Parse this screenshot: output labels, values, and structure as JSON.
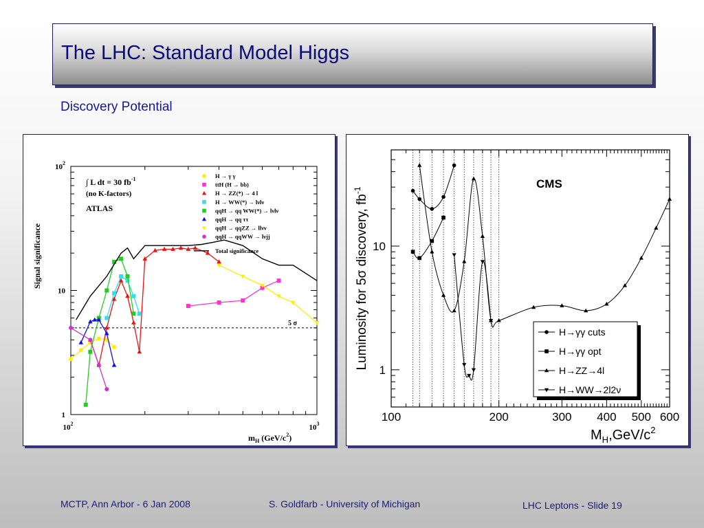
{
  "slide": {
    "title": "The LHC: Standard Model Higgs",
    "subtitle": "Discovery Potential"
  },
  "footer": {
    "left": "MCTP, Ann Arbor - 6 Jan 2008",
    "middle": "S. Goldfarb - University of Michigan",
    "right": "LHC Leptons - Slide 19"
  },
  "chart_data": [
    {
      "type": "line",
      "ylabel": "Signal significance",
      "xlabel_base": "m",
      "xlabel_sub": "H",
      "xlabel_unit": " (GeV/c",
      "xlabel_unit_sup": "2",
      "xlabel_close": ")",
      "xscale": "log",
      "yscale": "log",
      "xlim": [
        100,
        1000
      ],
      "ylim": [
        1,
        100
      ],
      "y_ticks": [
        {
          "base": "1",
          "exp": ""
        },
        {
          "base": "10",
          "exp": ""
        },
        {
          "base": "10",
          "exp": "2"
        }
      ],
      "x_ticks": [
        {
          "base": "10",
          "exp": "2"
        },
        {
          "base": "10",
          "exp": "3"
        }
      ],
      "annotation_lumi_pre": "∫ L dt = 30 fb",
      "annotation_lumi_sup": "-1",
      "annotation_kfactor": "(no K-factors)",
      "annotation_exp": "ATLAS",
      "threshold_label": "5 σ",
      "threshold": 5,
      "legend": [
        {
          "label": "H  →  γ γ",
          "color": "#ffee00",
          "marker": "circle"
        },
        {
          "label": "ttH (H  →  bb)",
          "color": "#ff33cc",
          "marker": "square"
        },
        {
          "label": "H   →  ZZ(*)   →  4 l",
          "color": "#ee1111",
          "marker": "triangle"
        },
        {
          "label": "H   →  WW(*)   →  lνlν",
          "color": "#33ddee",
          "marker": "square"
        },
        {
          "label": "qqH   →  qq WW(*)   →  lνlν",
          "color": "#22cc22",
          "marker": "square"
        },
        {
          "label": "qqH   →  qq ττ",
          "color": "#1111dd",
          "marker": "triangle"
        },
        {
          "label": "qqH   →  qqZZ   →  llνν",
          "color": "#ffee00",
          "marker": "triangle-down"
        },
        {
          "label": "qqH   →  qqWW   →  lνjj",
          "color": "#cc33cc",
          "marker": "circle"
        },
        {
          "label": "Total significance",
          "color": "#000000",
          "marker": "line"
        }
      ],
      "series": [
        {
          "name": "H → γγ",
          "color": "#ffee00",
          "marker": "circle",
          "x": [
            100,
            110,
            120,
            130,
            140,
            150
          ],
          "y": [
            2.8,
            3.3,
            3.8,
            4.1,
            4.0,
            3.5
          ]
        },
        {
          "name": "ttH (H → bb)",
          "color": "#ff33cc",
          "marker": "square",
          "x": [
            300,
            400,
            500,
            600,
            700
          ],
          "y": [
            7.5,
            8.0,
            8.3,
            10.5,
            12
          ]
        },
        {
          "name": "H → ZZ(*) → 4l",
          "color": "#ee1111",
          "marker": "triangle",
          "x": [
            120,
            130,
            140,
            150,
            160,
            170,
            180,
            190,
            200,
            220,
            240,
            260,
            280,
            300,
            320,
            360,
            400
          ],
          "y": [
            4.0,
            2.5,
            5.0,
            8.5,
            12,
            9.0,
            5.5,
            3.2,
            18,
            21,
            21.5,
            21.5,
            22,
            21.5,
            22,
            20,
            17
          ]
        },
        {
          "name": "H → WW(*) → lνlν",
          "color": "#33ddee",
          "marker": "square",
          "x": [
            140,
            150,
            160,
            170,
            180,
            190
          ],
          "y": [
            6.0,
            9.5,
            13,
            12,
            9.0,
            6.5
          ]
        },
        {
          "name": "qqH → qqWW(*) → lνlν",
          "color": "#22cc22",
          "marker": "square",
          "x": [
            115,
            120,
            130,
            140,
            150,
            160,
            170,
            180
          ],
          "y": [
            1.2,
            3.2,
            6.0,
            10,
            17,
            18,
            13,
            6.5
          ]
        },
        {
          "name": "qqH → qqττ",
          "color": "#1111dd",
          "marker": "triangle",
          "x": [
            110,
            120,
            125,
            130,
            140,
            150
          ],
          "y": [
            3.8,
            5.6,
            5.8,
            5.8,
            4.5,
            2.5
          ]
        },
        {
          "name": "qqH → qqZZ → llνν",
          "color": "#ffee00",
          "marker": "triangle-down",
          "x": [
            400,
            500,
            600,
            700,
            800,
            1000
          ],
          "y": [
            16,
            13,
            11,
            9.0,
            8.0,
            5.5
          ]
        },
        {
          "name": "qqH → qqWW → lνjj",
          "color": "#cc33cc",
          "marker": "circle",
          "x": [
            100,
            120,
            130,
            140
          ],
          "y": [
            5.0,
            4.0,
            2.5,
            1.6
          ]
        },
        {
          "name": "Total significance",
          "color": "#000000",
          "marker": "none",
          "x": [
            105,
            120,
            140,
            160,
            170,
            180,
            200,
            250,
            300,
            340,
            380,
            420,
            500,
            600,
            700,
            800,
            1000
          ],
          "y": [
            5.8,
            9.0,
            13,
            20,
            22,
            18,
            23,
            23,
            23,
            23.5,
            24.5,
            25.5,
            23,
            18,
            16,
            16,
            12
          ]
        }
      ]
    },
    {
      "type": "line",
      "label_exp": "CMS",
      "ylabel": "Luminosity for 5σ discovery, fb",
      "ylabel_sup": "-1",
      "xlabel_base": "M",
      "xlabel_sub": "H",
      "xlabel_rest": ",GeV/c",
      "xlabel_sup": "2",
      "xscale": "log",
      "yscale": "log",
      "xlim": [
        100,
        600
      ],
      "ylim": [
        0.5,
        60
      ],
      "x_tick_labels": [
        "100",
        "200",
        "300",
        "400",
        "500",
        "600"
      ],
      "x_tick_values": [
        100,
        200,
        300,
        400,
        500,
        600
      ],
      "y_tick_labels": [
        "1",
        "10"
      ],
      "y_tick_values": [
        1,
        10
      ],
      "dotted_vertical_lines": [
        115,
        120,
        130,
        140,
        150,
        160,
        170,
        180,
        190,
        200
      ],
      "legend": [
        {
          "label": "H→γγ cuts",
          "marker": "circle"
        },
        {
          "label": "H→γγ opt",
          "marker": "square"
        },
        {
          "label": "H→ZZ→4l",
          "marker": "triangle"
        },
        {
          "label": "H→WW→2l2ν",
          "marker": "triangle-down"
        }
      ],
      "series": [
        {
          "name": "H→γγ cuts",
          "marker": "circle",
          "x": [
            115,
            120,
            130,
            140,
            150
          ],
          "y": [
            28,
            24,
            20,
            25,
            45
          ]
        },
        {
          "name": "H→γγ opt",
          "marker": "square",
          "x": [
            115,
            120,
            130,
            140
          ],
          "y": [
            9.0,
            8.0,
            11,
            17
          ]
        },
        {
          "name": "H→ZZ→4l",
          "marker": "triangle",
          "x": [
            120,
            130,
            140,
            150,
            160,
            170,
            180,
            190,
            200,
            250,
            300,
            350,
            400,
            450,
            500,
            550,
            600
          ],
          "y": [
            45,
            9.0,
            4.0,
            3.0,
            7.5,
            35,
            12,
            2.5,
            2.5,
            3.2,
            3.3,
            3.0,
            3.4,
            4.8,
            8.0,
            14,
            24
          ]
        },
        {
          "name": "H→WW→2l2ν",
          "marker": "triangle-down",
          "x": [
            150,
            160,
            165,
            170,
            180,
            190
          ],
          "y": [
            8.5,
            1.1,
            0.9,
            1.0,
            7.5,
            2.5
          ]
        }
      ]
    }
  ]
}
